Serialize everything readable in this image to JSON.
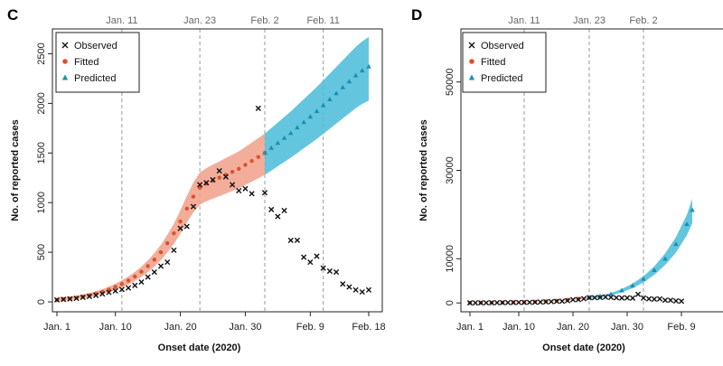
{
  "chart_data": [
    {
      "panel": "C",
      "type": "scatter",
      "xlabel": "Onset date (2020)",
      "ylabel": "No. of reported cases",
      "xlim": [
        0,
        49
      ],
      "ylim": [
        -100,
        2750
      ],
      "x_ticks": [
        {
          "label": "Jan. 1",
          "day": 1
        },
        {
          "label": "Jan. 10",
          "day": 10
        },
        {
          "label": "Jan. 20",
          "day": 20
        },
        {
          "label": "Jan. 30",
          "day": 30
        },
        {
          "label": "Feb. 9",
          "day": 40
        },
        {
          "label": "Feb. 18",
          "day": 49
        }
      ],
      "y_ticks": [
        0,
        500,
        1000,
        1500,
        2000,
        2500
      ],
      "milestones": [
        {
          "label": "Jan. 11",
          "day": 11
        },
        {
          "label": "Jan. 23",
          "day": 23
        },
        {
          "label": "Feb. 2",
          "day": 33
        },
        {
          "label": "Feb. 11",
          "day": 42
        }
      ],
      "legend": [
        "Observed",
        "Fitted",
        "Predicted"
      ],
      "series": [
        {
          "name": "Observed",
          "x": [
            1,
            2,
            3,
            4,
            5,
            6,
            7,
            8,
            9,
            10,
            11,
            12,
            13,
            14,
            15,
            16,
            17,
            18,
            19,
            20,
            21,
            22,
            23,
            24,
            25,
            26,
            27,
            28,
            29,
            30,
            31,
            32,
            33,
            34,
            35,
            36,
            37,
            38,
            39,
            40,
            41,
            42,
            43,
            44,
            45,
            46,
            47,
            48,
            49
          ],
          "y": [
            20,
            25,
            30,
            35,
            45,
            55,
            65,
            80,
            95,
            110,
            125,
            140,
            165,
            200,
            250,
            300,
            360,
            400,
            520,
            740,
            760,
            960,
            1180,
            1200,
            1230,
            1320,
            1260,
            1180,
            1120,
            1140,
            1090,
            1950,
            1100,
            930,
            860,
            920,
            620,
            620,
            450,
            400,
            460,
            340,
            310,
            300,
            180,
            150,
            120,
            100,
            120
          ]
        },
        {
          "name": "Fitted",
          "x": [
            1,
            2,
            3,
            4,
            5,
            6,
            7,
            8,
            9,
            10,
            11,
            12,
            13,
            14,
            15,
            16,
            17,
            18,
            19,
            20,
            21,
            22,
            23,
            24,
            25,
            26,
            27,
            28,
            29,
            30,
            31,
            32,
            33
          ],
          "y": [
            20,
            26,
            33,
            42,
            53,
            66,
            82,
            101,
            124,
            150,
            180,
            215,
            256,
            304,
            360,
            425,
            500,
            590,
            690,
            810,
            940,
            1060,
            1150,
            1190,
            1220,
            1250,
            1280,
            1310,
            1340,
            1380,
            1420,
            1460,
            1500
          ]
        },
        {
          "name": "Predicted",
          "x": [
            33,
            34,
            35,
            36,
            37,
            38,
            39,
            40,
            41,
            42,
            43,
            44,
            45,
            46,
            47,
            48,
            49
          ],
          "y": [
            1500,
            1550,
            1600,
            1650,
            1700,
            1755,
            1810,
            1865,
            1920,
            1980,
            2040,
            2100,
            2160,
            2220,
            2280,
            2330,
            2370
          ]
        }
      ]
    },
    {
      "panel": "D",
      "type": "scatter",
      "xlabel": "Onset date (2020)",
      "ylabel": "No. of reported cases",
      "xlim": [
        0,
        49
      ],
      "ylim": [
        -2000,
        62000
      ],
      "x_ticks": [
        {
          "label": "Jan. 1",
          "day": 1
        },
        {
          "label": "Jan. 10",
          "day": 10
        },
        {
          "label": "Jan. 20",
          "day": 20
        },
        {
          "label": "Jan. 30",
          "day": 30
        },
        {
          "label": "Feb. 9",
          "day": 40
        }
      ],
      "y_ticks": [
        0,
        10000,
        30000,
        50000
      ],
      "milestones": [
        {
          "label": "Jan. 11",
          "day": 11
        },
        {
          "label": "Jan. 23",
          "day": 23
        },
        {
          "label": "Feb. 2",
          "day": 33
        }
      ],
      "legend": [
        "Observed",
        "Fitted",
        "Predicted"
      ],
      "series": [
        {
          "name": "Observed",
          "x": [
            1,
            2,
            3,
            4,
            5,
            6,
            7,
            8,
            9,
            10,
            11,
            12,
            13,
            14,
            15,
            16,
            17,
            18,
            19,
            20,
            21,
            22,
            23,
            24,
            25,
            26,
            27,
            28,
            29,
            30,
            31,
            32,
            33,
            34,
            35,
            36,
            37,
            38,
            39,
            40
          ],
          "y": [
            20,
            25,
            30,
            35,
            45,
            55,
            65,
            80,
            95,
            110,
            125,
            140,
            165,
            200,
            250,
            300,
            360,
            400,
            520,
            740,
            760,
            960,
            1180,
            1200,
            1230,
            1320,
            1260,
            1180,
            1120,
            1140,
            1090,
            1950,
            1100,
            930,
            860,
            920,
            620,
            620,
            450,
            400
          ]
        },
        {
          "name": "Fitted",
          "x": [
            1,
            3,
            5,
            7,
            9,
            11,
            13,
            15,
            17,
            19,
            21,
            23
          ],
          "y": [
            20,
            33,
            53,
            82,
            124,
            180,
            256,
            360,
            500,
            690,
            940,
            1150
          ]
        },
        {
          "name": "Predicted",
          "x": [
            23,
            25,
            27,
            29,
            31,
            33,
            35,
            37,
            39,
            41,
            42
          ],
          "y": [
            1200,
            1500,
            2000,
            2800,
            3900,
            5400,
            7400,
            10000,
            13300,
            17800,
            21000
          ]
        }
      ]
    }
  ]
}
